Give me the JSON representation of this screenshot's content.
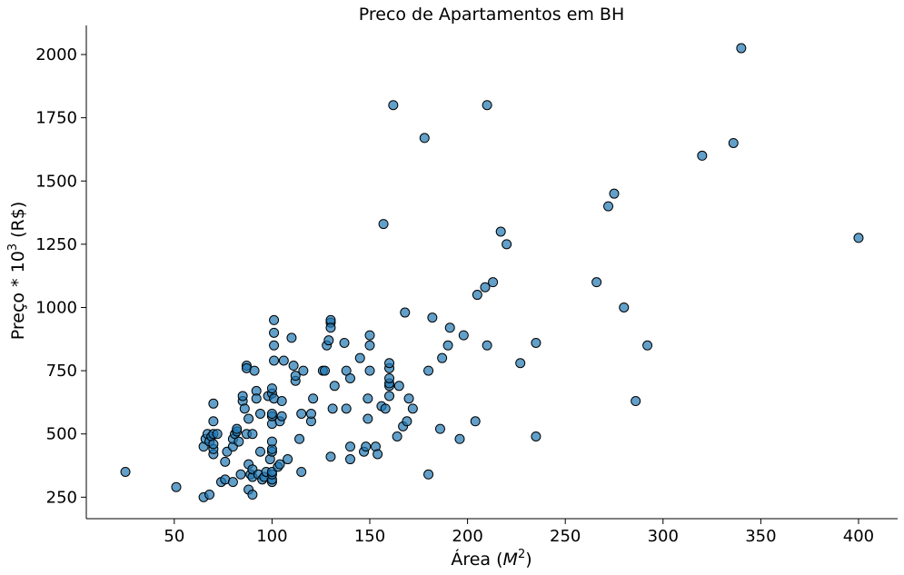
{
  "chart_data": {
    "type": "scatter",
    "title": "Preco de Apartamentos em BH",
    "xlabel_text": "Área (",
    "xlabel_math": "M",
    "xlabel_sup": "2",
    "xlabel_close": ")",
    "ylabel_text": "Preço * 10",
    "ylabel_sup": "3",
    "ylabel_suffix": " (R$)",
    "xlim": [
      5,
      420
    ],
    "ylim": [
      165,
      2115
    ],
    "x_ticks": [
      50,
      100,
      150,
      200,
      250,
      300,
      350,
      400
    ],
    "y_ticks": [
      250,
      500,
      750,
      1000,
      1250,
      1500,
      1750,
      2000
    ],
    "grid": false,
    "color": "#1f77b4",
    "points": [
      [
        25,
        350
      ],
      [
        51,
        290
      ],
      [
        65,
        250
      ],
      [
        68,
        260
      ],
      [
        65,
        450
      ],
      [
        66,
        480
      ],
      [
        67,
        500
      ],
      [
        68,
        470
      ],
      [
        69,
        490
      ],
      [
        70,
        500
      ],
      [
        70,
        620
      ],
      [
        70,
        550
      ],
      [
        70,
        420
      ],
      [
        70,
        440
      ],
      [
        70,
        460
      ],
      [
        72,
        500
      ],
      [
        74,
        310
      ],
      [
        76,
        320
      ],
      [
        76,
        390
      ],
      [
        77,
        430
      ],
      [
        80,
        310
      ],
      [
        80,
        450
      ],
      [
        80,
        480
      ],
      [
        81,
        500
      ],
      [
        82,
        510
      ],
      [
        82,
        520
      ],
      [
        83,
        470
      ],
      [
        84,
        340
      ],
      [
        85,
        630
      ],
      [
        85,
        650
      ],
      [
        86,
        600
      ],
      [
        87,
        770
      ],
      [
        87,
        760
      ],
      [
        87,
        500
      ],
      [
        88,
        560
      ],
      [
        88,
        380
      ],
      [
        88,
        280
      ],
      [
        89,
        340
      ],
      [
        90,
        260
      ],
      [
        90,
        330
      ],
      [
        90,
        360
      ],
      [
        90,
        500
      ],
      [
        91,
        750
      ],
      [
        92,
        670
      ],
      [
        92,
        640
      ],
      [
        93,
        340
      ],
      [
        94,
        430
      ],
      [
        94,
        580
      ],
      [
        95,
        320
      ],
      [
        96,
        330
      ],
      [
        97,
        350
      ],
      [
        98,
        650
      ],
      [
        99,
        400
      ],
      [
        100,
        310
      ],
      [
        100,
        320
      ],
      [
        100,
        340
      ],
      [
        100,
        350
      ],
      [
        100,
        430
      ],
      [
        100,
        440
      ],
      [
        100,
        470
      ],
      [
        100,
        540
      ],
      [
        100,
        570
      ],
      [
        100,
        580
      ],
      [
        100,
        660
      ],
      [
        100,
        680
      ],
      [
        101,
        640
      ],
      [
        101,
        790
      ],
      [
        101,
        850
      ],
      [
        101,
        900
      ],
      [
        101,
        950
      ],
      [
        103,
        370
      ],
      [
        104,
        380
      ],
      [
        104,
        550
      ],
      [
        105,
        570
      ],
      [
        105,
        630
      ],
      [
        106,
        790
      ],
      [
        108,
        400
      ],
      [
        110,
        880
      ],
      [
        111,
        770
      ],
      [
        112,
        710
      ],
      [
        112,
        730
      ],
      [
        114,
        480
      ],
      [
        115,
        350
      ],
      [
        115,
        580
      ],
      [
        116,
        750
      ],
      [
        120,
        550
      ],
      [
        120,
        580
      ],
      [
        121,
        640
      ],
      [
        126,
        750
      ],
      [
        127,
        750
      ],
      [
        128,
        850
      ],
      [
        129,
        870
      ],
      [
        130,
        940
      ],
      [
        130,
        950
      ],
      [
        130,
        920
      ],
      [
        130,
        410
      ],
      [
        131,
        600
      ],
      [
        132,
        690
      ],
      [
        137,
        860
      ],
      [
        138,
        600
      ],
      [
        138,
        750
      ],
      [
        140,
        720
      ],
      [
        140,
        400
      ],
      [
        140,
        450
      ],
      [
        145,
        800
      ],
      [
        147,
        430
      ],
      [
        148,
        450
      ],
      [
        149,
        560
      ],
      [
        149,
        640
      ],
      [
        150,
        850
      ],
      [
        150,
        890
      ],
      [
        150,
        750
      ],
      [
        153,
        450
      ],
      [
        154,
        420
      ],
      [
        156,
        610
      ],
      [
        157,
        1330
      ],
      [
        158,
        600
      ],
      [
        160,
        650
      ],
      [
        160,
        690
      ],
      [
        160,
        700
      ],
      [
        160,
        720
      ],
      [
        160,
        760
      ],
      [
        160,
        780
      ],
      [
        162,
        1800
      ],
      [
        164,
        490
      ],
      [
        165,
        690
      ],
      [
        167,
        530
      ],
      [
        168,
        980
      ],
      [
        169,
        550
      ],
      [
        170,
        640
      ],
      [
        172,
        600
      ],
      [
        178,
        1670
      ],
      [
        180,
        750
      ],
      [
        180,
        340
      ],
      [
        182,
        960
      ],
      [
        186,
        520
      ],
      [
        187,
        800
      ],
      [
        190,
        850
      ],
      [
        191,
        920
      ],
      [
        196,
        480
      ],
      [
        198,
        890
      ],
      [
        204,
        550
      ],
      [
        205,
        1050
      ],
      [
        209,
        1080
      ],
      [
        210,
        1800
      ],
      [
        210,
        850
      ],
      [
        213,
        1100
      ],
      [
        217,
        1300
      ],
      [
        220,
        1250
      ],
      [
        227,
        780
      ],
      [
        235,
        860
      ],
      [
        235,
        490
      ],
      [
        266,
        1100
      ],
      [
        272,
        1400
      ],
      [
        275,
        1450
      ],
      [
        280,
        1000
      ],
      [
        286,
        630
      ],
      [
        292,
        850
      ],
      [
        320,
        1600
      ],
      [
        336,
        1650
      ],
      [
        340,
        2025
      ],
      [
        400,
        1275
      ]
    ]
  }
}
